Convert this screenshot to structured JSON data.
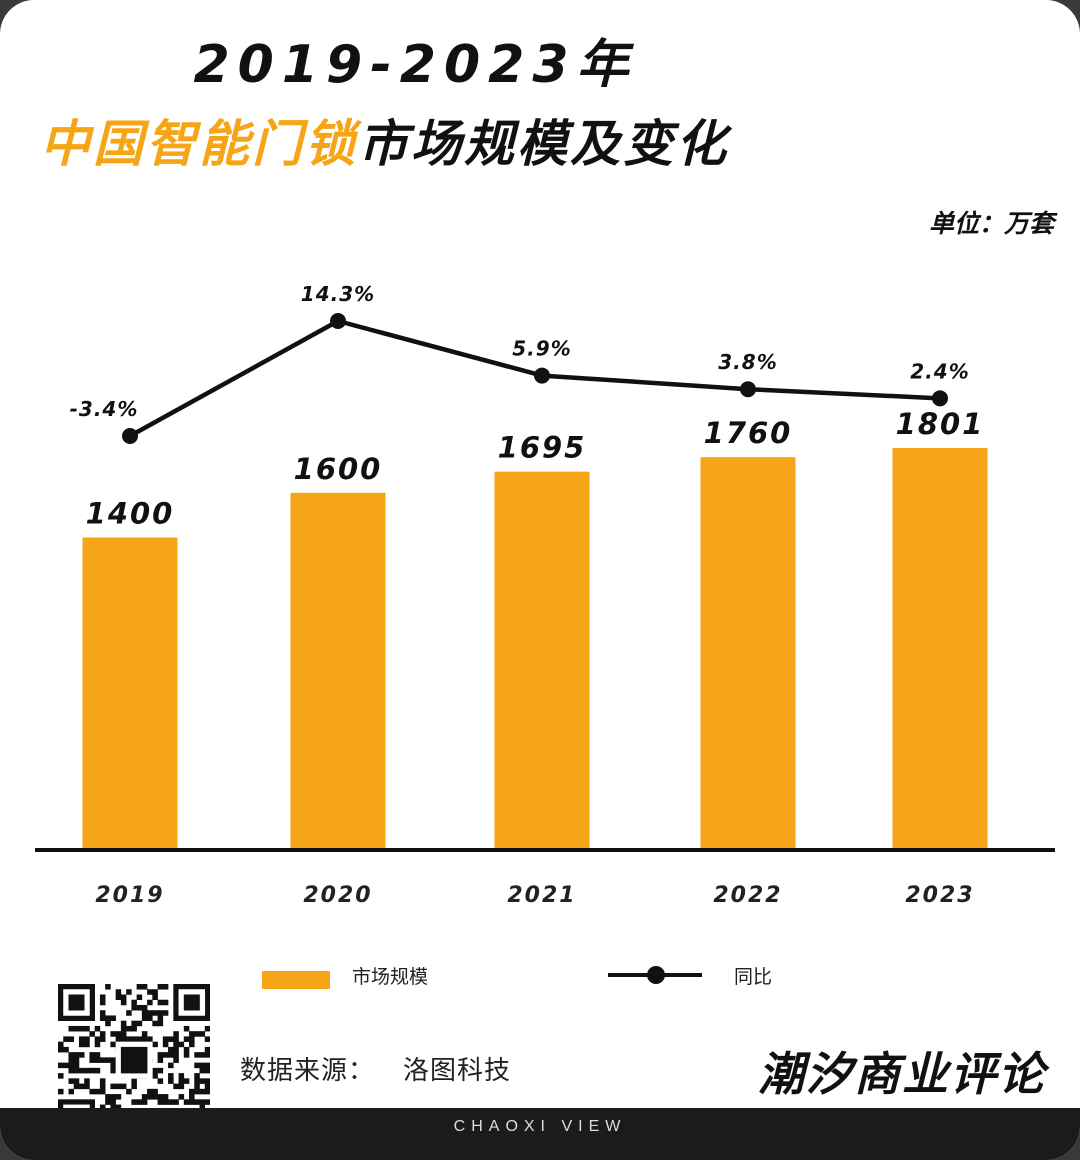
{
  "header": {
    "title_line1": "2019-2023年",
    "title_line2_highlight": "中国智能门锁",
    "title_line2_rest": "市场规模及变化",
    "unit": "单位：万套"
  },
  "chart_data": {
    "type": "bar",
    "categories": [
      "2019",
      "2020",
      "2021",
      "2022",
      "2023"
    ],
    "series": [
      {
        "name": "市场规模",
        "type": "bar",
        "values": [
          1400,
          1600,
          1695,
          1760,
          1801
        ],
        "labels": [
          "1400",
          "1600",
          "1695",
          "1760",
          "1801"
        ]
      },
      {
        "name": "同比",
        "type": "line",
        "values": [
          -3.4,
          14.3,
          5.9,
          3.8,
          2.4
        ],
        "labels": [
          "-3.4%",
          "14.3%",
          "5.9%",
          "3.8%",
          "2.4%"
        ]
      }
    ],
    "ylim": [
      0,
      1801
    ],
    "grid": false,
    "legend": "bottom",
    "colors": {
      "bar": "#f5a515",
      "line": "#111111"
    }
  },
  "legend": {
    "bar_label": "市场规模",
    "line_label": "同比"
  },
  "source": {
    "label": "数据来源：",
    "value": "洛图科技"
  },
  "brand": {
    "name": "潮汐商业评论",
    "tagline": "CHAOXI VIEW"
  },
  "icons": {
    "qr": "qr-code-icon"
  }
}
